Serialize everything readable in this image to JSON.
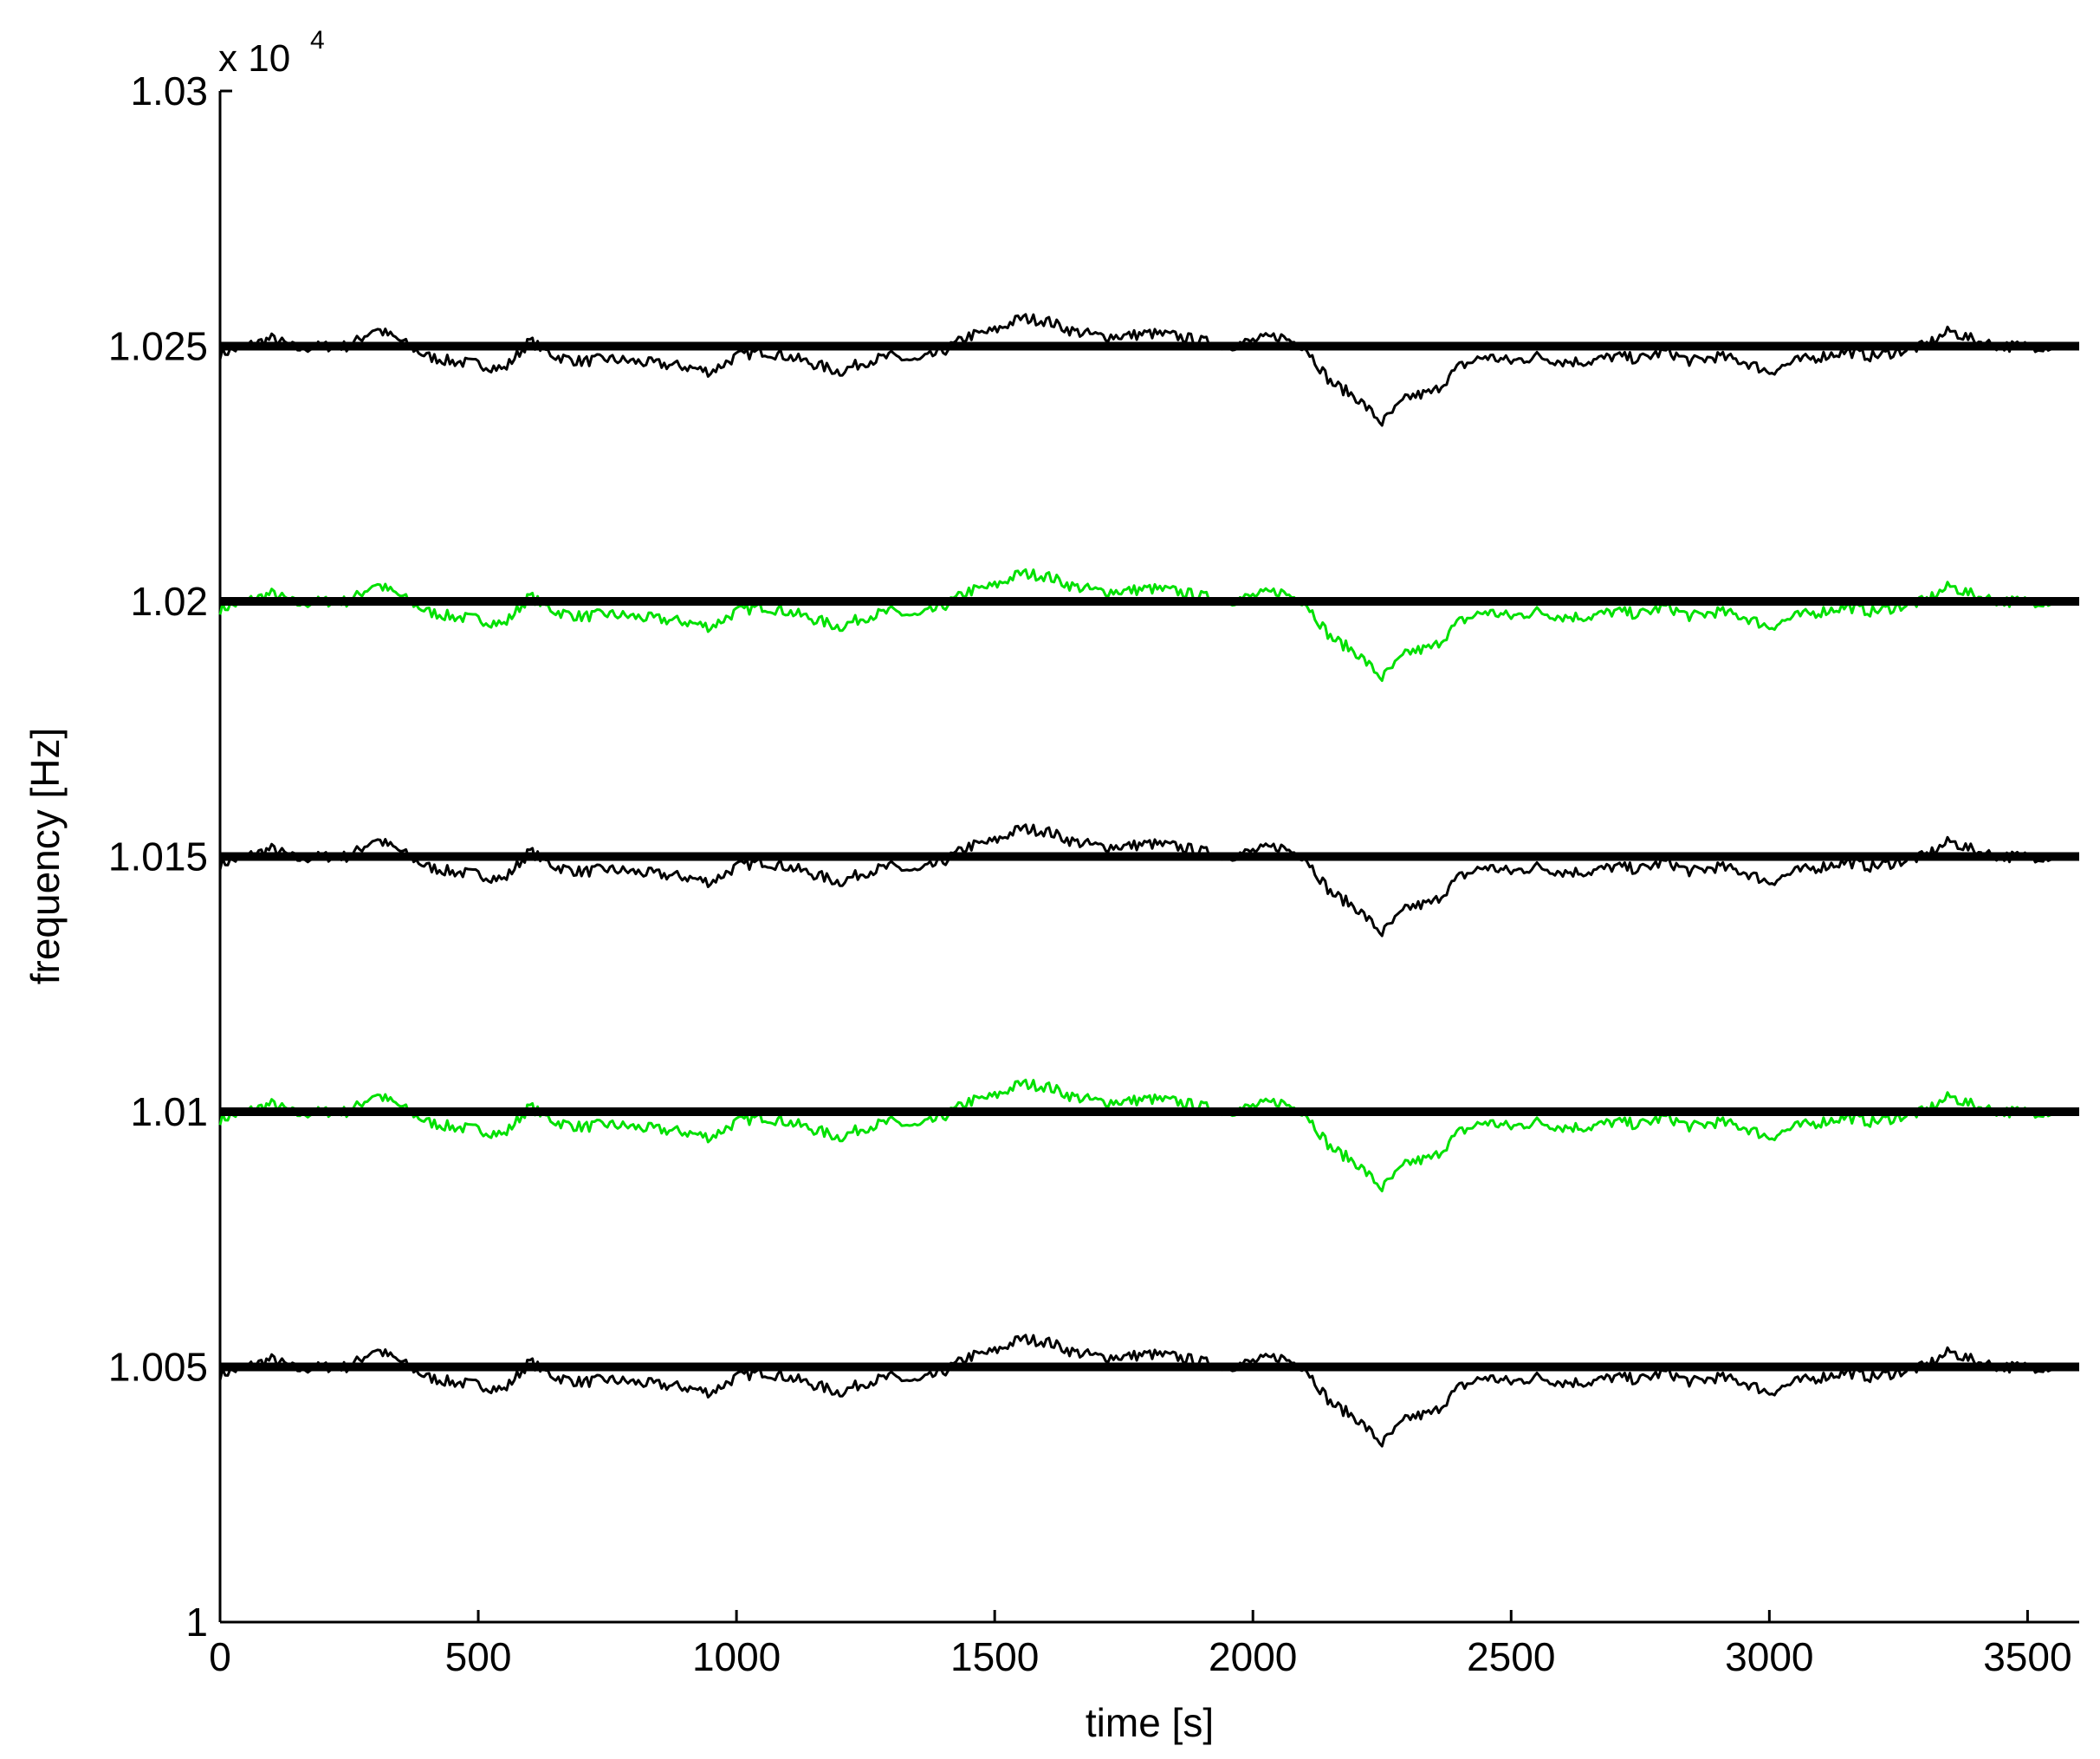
{
  "chart_data": {
    "type": "line",
    "title": "",
    "xlabel": "time [s]",
    "ylabel": "frequency [Hz]",
    "y_multiplier": {
      "base": "x 10",
      "exponent": "4"
    },
    "xlim": [
      0,
      3600
    ],
    "ylim": [
      1.0,
      1.03
    ],
    "x_ticks": [
      0,
      500,
      1000,
      1500,
      2000,
      2500,
      3000,
      3500
    ],
    "x_tick_labels": [
      "0",
      "500",
      "1000",
      "1500",
      "2000",
      "2500",
      "3000",
      "3500"
    ],
    "y_ticks": [
      1.0,
      1.005,
      1.01,
      1.015,
      1.02,
      1.025,
      1.03
    ],
    "y_tick_labels": [
      "1",
      "1.005",
      "1.01",
      "1.015",
      "1.02",
      "1.025",
      "1.03"
    ],
    "grid": false,
    "legend": "none",
    "reference_lines": [
      {
        "y": 1.025,
        "color": "#000000"
      },
      {
        "y": 1.02,
        "color": "#000000"
      },
      {
        "y": 1.015,
        "color": "#000000"
      },
      {
        "y": 1.01,
        "color": "#000000"
      },
      {
        "y": 1.005,
        "color": "#000000"
      }
    ],
    "series_colors": [
      "#000000",
      "#00e000",
      "#000000",
      "#00e000",
      "#000000"
    ],
    "series_offsets": [
      1.025,
      1.02,
      1.015,
      1.01,
      1.005
    ],
    "x": [
      0,
      50,
      100,
      150,
      200,
      250,
      300,
      350,
      400,
      450,
      500,
      550,
      600,
      650,
      700,
      750,
      800,
      850,
      900,
      950,
      1000,
      1050,
      1100,
      1150,
      1200,
      1250,
      1300,
      1350,
      1400,
      1450,
      1500,
      1550,
      1600,
      1650,
      1700,
      1750,
      1800,
      1850,
      1900,
      1950,
      2000,
      2050,
      2100,
      2150,
      2200,
      2250,
      2300,
      2350,
      2400,
      2450,
      2500,
      2550,
      2600,
      2650,
      2700,
      2750,
      2800,
      2850,
      2900,
      2950,
      3000,
      3050,
      3100,
      3150,
      3200,
      3250,
      3300,
      3350,
      3400,
      3450,
      3500,
      3550
    ],
    "deviation": [
      -0.00015,
      0.0,
      0.00015,
      -5e-05,
      0.0,
      0.0,
      0.00035,
      0.0001,
      -0.0002,
      -0.0003,
      -0.00035,
      -0.00045,
      0.0001,
      -0.0002,
      -0.0003,
      -0.00025,
      -0.0003,
      -0.00035,
      -0.0004,
      -0.0005,
      -0.0002,
      -0.0001,
      -0.0002,
      -0.00035,
      -0.0005,
      -0.0003,
      -0.0002,
      -0.0003,
      -0.0001,
      0.0002,
      0.0003,
      0.00055,
      0.0005,
      0.0003,
      0.0002,
      0.0002,
      0.00025,
      0.0002,
      0.0001,
      0.0,
      0.0001,
      0.0002,
      0.0,
      -0.0007,
      -0.001,
      -0.0015,
      -0.001,
      -0.0009,
      -0.0004,
      -0.0002,
      -0.0003,
      -0.0002,
      -0.0003,
      -0.0003,
      -0.0002,
      -0.00025,
      -0.0001,
      -0.0003,
      -0.0002,
      -0.0003,
      -0.0005,
      -0.0003,
      -0.0002,
      -0.0001,
      -0.0002,
      -0.0001,
      0.0,
      0.0003,
      0.0001,
      0.0,
      0.0,
      0.0
    ]
  }
}
